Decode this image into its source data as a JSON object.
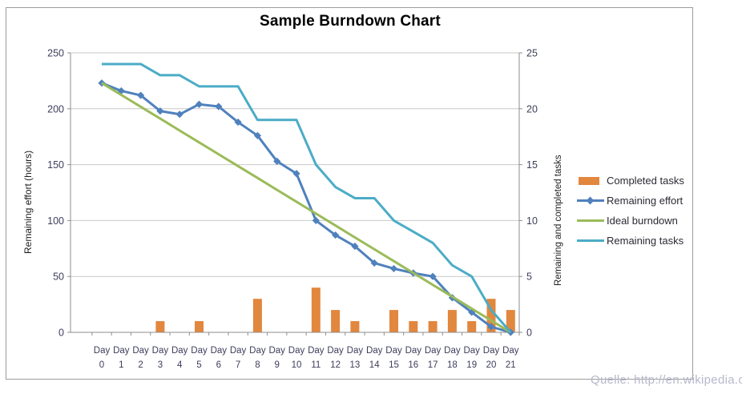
{
  "source_note": "Quelle: http://en.wikipedia.org",
  "chart_data": {
    "type": "bar-line-combo",
    "title": "Sample Burndown Chart",
    "categories": [
      "Day 0",
      "Day 1",
      "Day 2",
      "Day 3",
      "Day 4",
      "Day 5",
      "Day 6",
      "Day 7",
      "Day 8",
      "Day 9",
      "Day 10",
      "Day 11",
      "Day 12",
      "Day 13",
      "Day 14",
      "Day 15",
      "Day 16",
      "Day 17",
      "Day 18",
      "Day 19",
      "Day 20",
      "Day 21"
    ],
    "left_axis": {
      "label": "Remaining effort (hours)",
      "ticks": [
        250,
        200,
        150,
        100,
        50,
        0
      ],
      "range": [
        0,
        250
      ]
    },
    "right_axis": {
      "label": "Remaining and completed tasks",
      "ticks": [
        25,
        20,
        15,
        10,
        5,
        0
      ],
      "range": [
        0,
        25
      ]
    },
    "grid": true,
    "legend_position": "right",
    "colors": {
      "gridline": "#c9c9c9",
      "axis_line": "#8e8e8e",
      "tick_text": "#3d3d5c"
    },
    "series": [
      {
        "name": "Completed tasks",
        "type": "bar",
        "axis": "right",
        "color": "#e2873e",
        "values": [
          0,
          0,
          0,
          1,
          0,
          1,
          0,
          0,
          3,
          0,
          0,
          4,
          2,
          1,
          0,
          2,
          1,
          1,
          2,
          1,
          3,
          2
        ]
      },
      {
        "name": "Remaining effort",
        "type": "line-diamond",
        "axis": "left",
        "color": "#4f81bd",
        "values": [
          223,
          216,
          212,
          198,
          195,
          204,
          202,
          188,
          176,
          153,
          142,
          100,
          87,
          77,
          62,
          57,
          53,
          50,
          31,
          18,
          5,
          0
        ]
      },
      {
        "name": "Ideal burndown",
        "type": "line",
        "axis": "left",
        "color": "#9bbb59",
        "values": [
          223,
          212.4,
          201.8,
          191.2,
          180.5,
          169.9,
          159.3,
          148.7,
          138.1,
          127.4,
          116.8,
          106.2,
          95.6,
          84.9,
          74.3,
          63.7,
          53.1,
          42.5,
          31.9,
          21.2,
          10.6,
          0
        ]
      },
      {
        "name": "Remaining tasks",
        "type": "line",
        "axis": "right",
        "color": "#4bacc6",
        "values": [
          24,
          24,
          24,
          23,
          23,
          22,
          22,
          22,
          19,
          19,
          19,
          15,
          13,
          12,
          12,
          10,
          9,
          8,
          6,
          5,
          2,
          0
        ]
      }
    ]
  }
}
